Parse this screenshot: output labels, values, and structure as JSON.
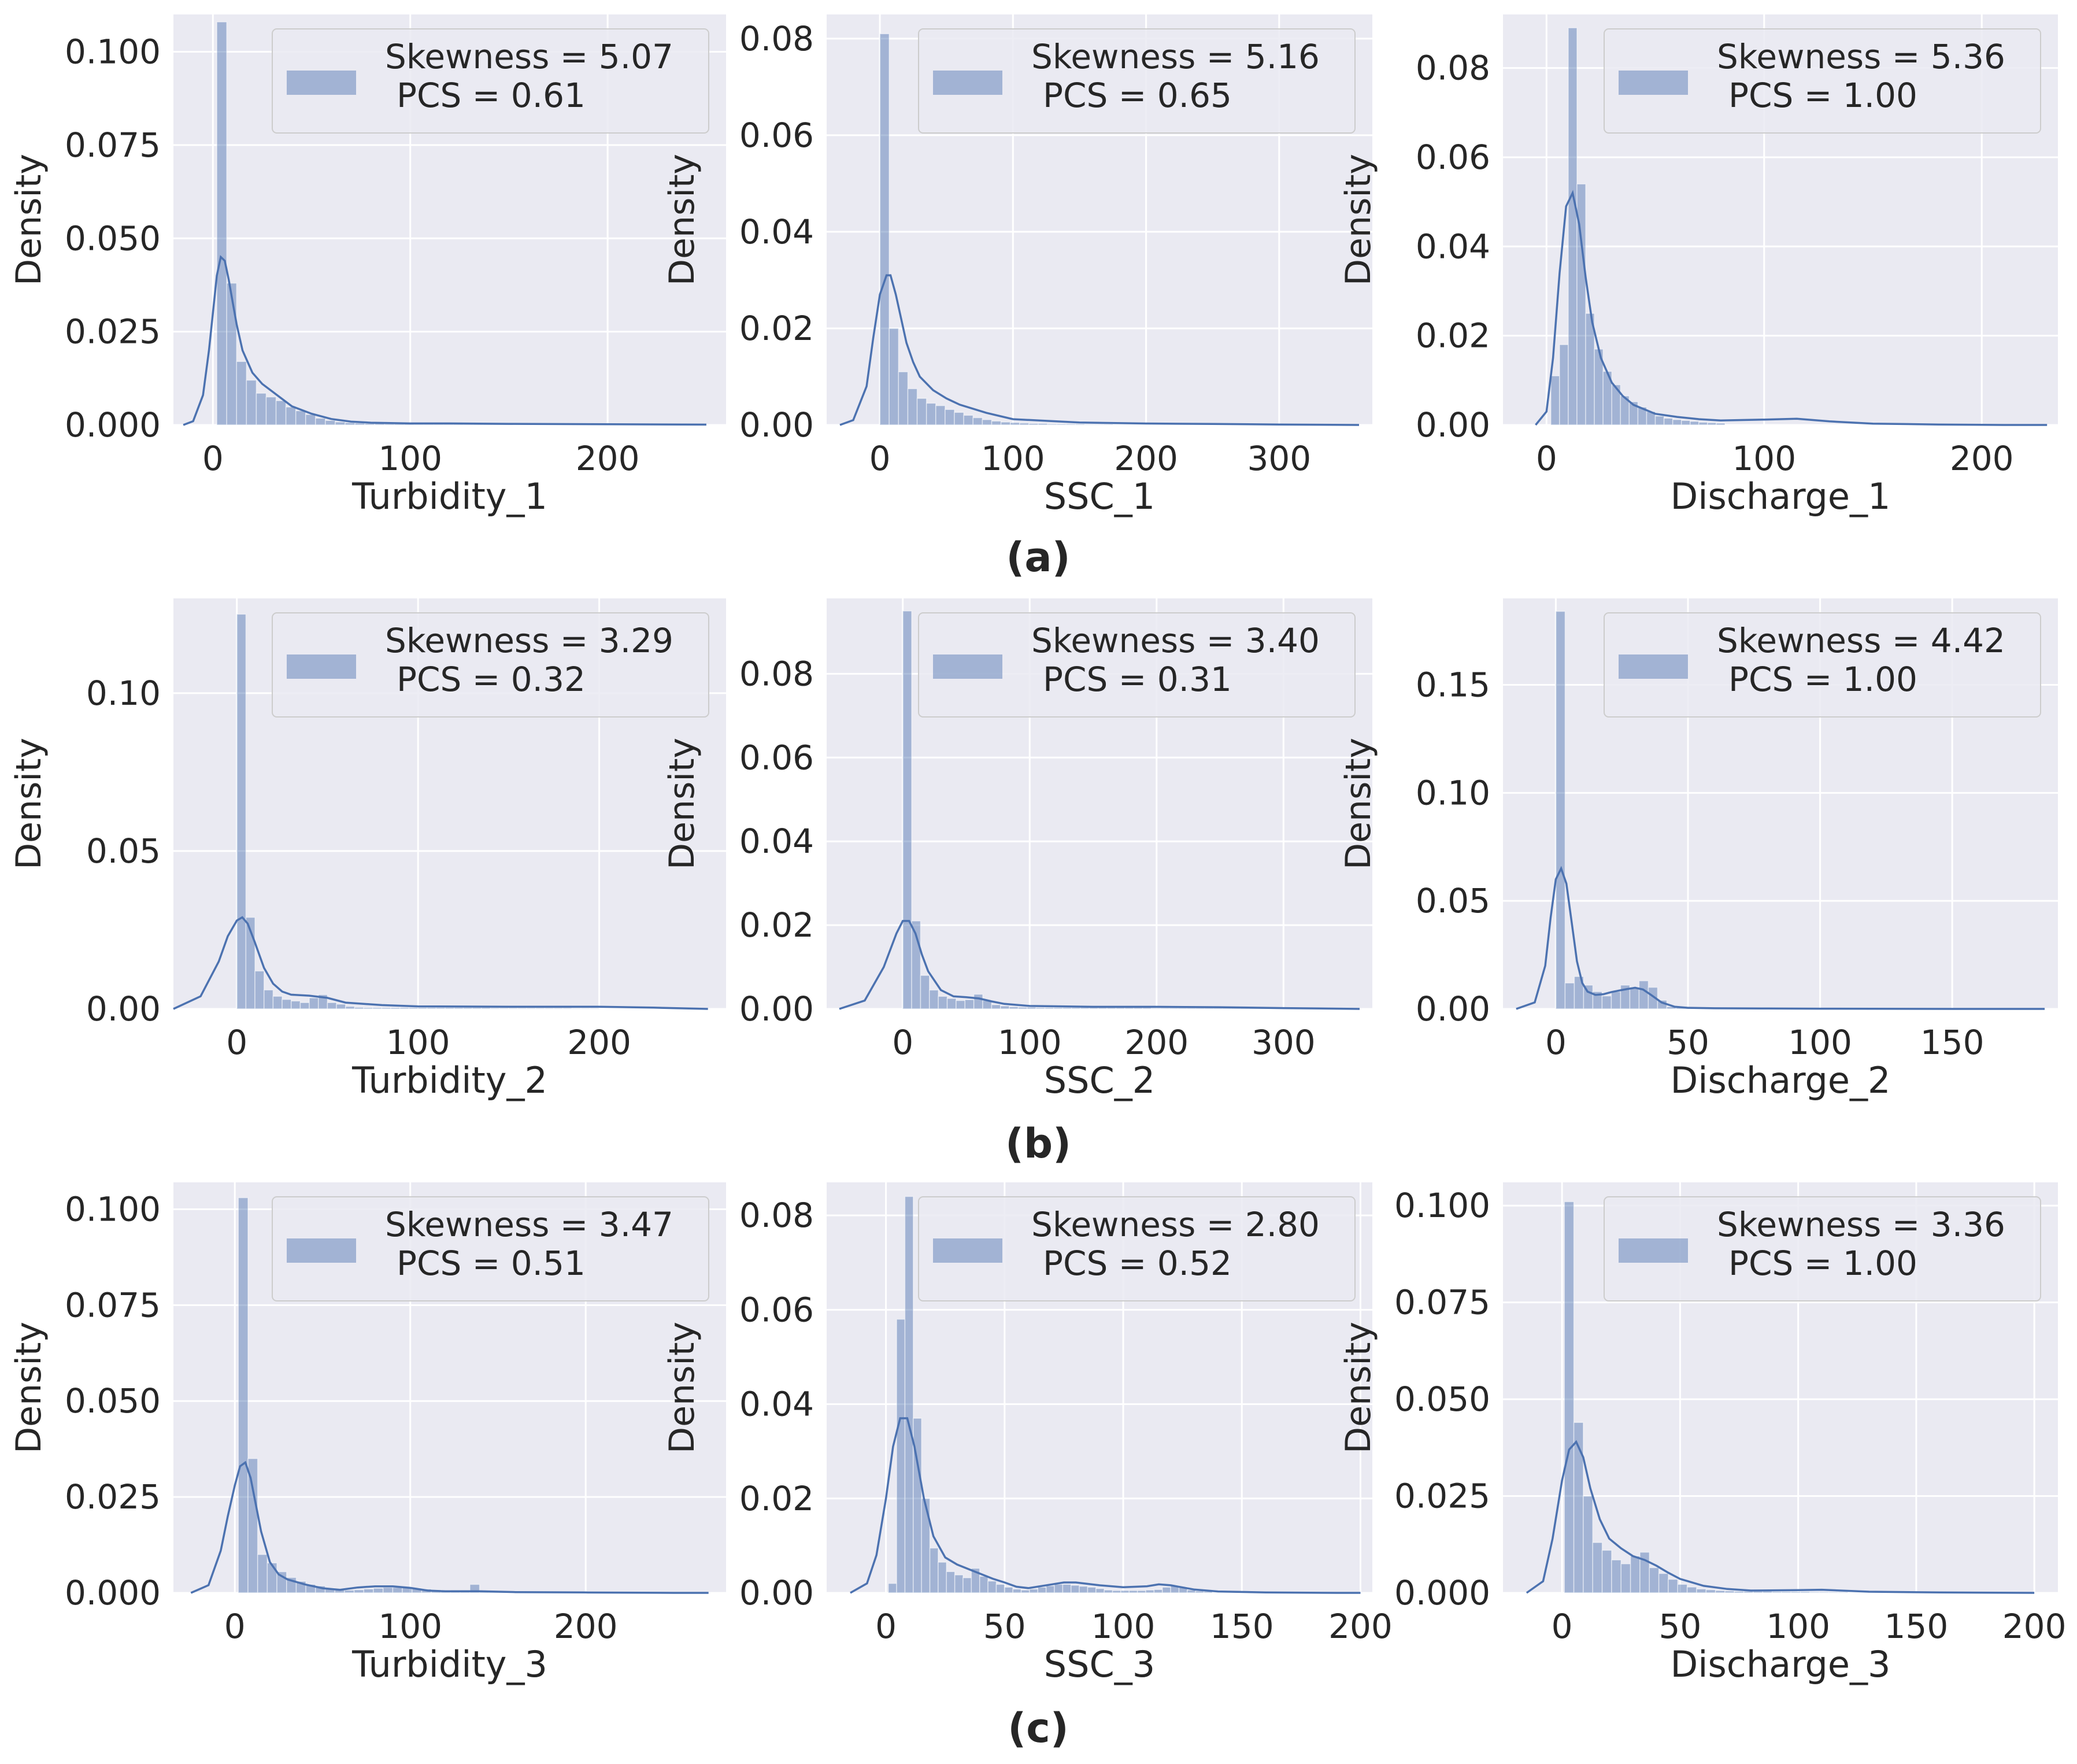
{
  "figure": {
    "row_labels": [
      "(a)",
      "(b)",
      "(c)"
    ]
  },
  "style": {
    "panel_bg": "#eaeaf2",
    "grid": "#ffffff",
    "bar_fill": "#4c72b0",
    "bar_opacity": 0.45,
    "kde_line": "#4c72b0",
    "text": "#262626",
    "legend_bg": "#eaeaf2",
    "legend_border": "#cccccc"
  },
  "chart_data": [
    {
      "type": "histogram",
      "row": "a",
      "xlabel": "Turbidity_1",
      "ylabel": "Density",
      "xlim": [
        -20,
        260
      ],
      "ylim": [
        0,
        0.11
      ],
      "xticks": [
        0,
        100,
        200
      ],
      "yticks": [
        0.0,
        0.025,
        0.05,
        0.075,
        0.1
      ],
      "ytick_labels": [
        "0.000",
        "0.025",
        "0.050",
        "0.075",
        "0.100"
      ],
      "legend": [
        "Skewness = 5.07",
        "PCS = 0.61"
      ],
      "bins": {
        "start": 2,
        "width": 5
      },
      "bar_values": [
        0.108,
        0.038,
        0.017,
        0.012,
        0.0085,
        0.0075,
        0.0065,
        0.0048,
        0.0038,
        0.0028,
        0.0018,
        0.0012,
        0.0008,
        0.0006,
        0.0005,
        0.0004,
        0.0004,
        0.0003,
        0.0003,
        0.0003,
        0.0002,
        0.0002,
        0.0002,
        0.0002,
        0.0002,
        0.0001,
        0.0001,
        0.0001,
        0.0001,
        0.0001
      ],
      "kde": {
        "x": [
          -15,
          -10,
          -5,
          -2,
          0,
          2,
          4,
          6,
          8,
          10,
          12,
          15,
          20,
          25,
          30,
          35,
          40,
          50,
          60,
          70,
          80,
          100,
          120,
          150,
          200,
          250
        ],
        "y": [
          0.0,
          0.001,
          0.008,
          0.02,
          0.03,
          0.04,
          0.045,
          0.044,
          0.039,
          0.033,
          0.027,
          0.02,
          0.014,
          0.011,
          0.009,
          0.007,
          0.005,
          0.003,
          0.0016,
          0.0009,
          0.0006,
          0.0004,
          0.0004,
          0.0003,
          0.0002,
          0.0001
        ]
      }
    },
    {
      "type": "histogram",
      "row": "a",
      "xlabel": "SSC_1",
      "ylabel": "Density",
      "xlim": [
        -40,
        370
      ],
      "ylim": [
        0,
        0.085
      ],
      "xticks": [
        0,
        100,
        200,
        300
      ],
      "yticks": [
        0.0,
        0.02,
        0.04,
        0.06,
        0.08
      ],
      "ytick_labels": [
        "0.00",
        "0.02",
        "0.04",
        "0.06",
        "0.08"
      ],
      "legend": [
        "Skewness = 5.16",
        "PCS = 0.65"
      ],
      "bins": {
        "start": 0,
        "width": 7
      },
      "bar_values": [
        0.081,
        0.02,
        0.011,
        0.0075,
        0.0055,
        0.0045,
        0.004,
        0.0032,
        0.0026,
        0.002,
        0.0015,
        0.0011,
        0.0008,
        0.0006,
        0.0005,
        0.0004,
        0.0003,
        0.0003,
        0.0002,
        0.0002,
        0.0002,
        0.0002,
        0.0001,
        0.0001,
        0.0001
      ],
      "kde": {
        "x": [
          -30,
          -20,
          -10,
          -5,
          0,
          5,
          8,
          12,
          16,
          20,
          25,
          30,
          40,
          50,
          60,
          80,
          100,
          150,
          200,
          250,
          300,
          360
        ],
        "y": [
          0.0,
          0.001,
          0.008,
          0.018,
          0.027,
          0.031,
          0.031,
          0.027,
          0.022,
          0.017,
          0.013,
          0.01,
          0.0072,
          0.0055,
          0.0042,
          0.0025,
          0.0012,
          0.0005,
          0.0003,
          0.0002,
          0.0001,
          0.0
        ]
      }
    },
    {
      "type": "histogram",
      "row": "a",
      "xlabel": "Discharge_1",
      "ylabel": "Density",
      "xlim": [
        -20,
        235
      ],
      "ylim": [
        0,
        0.092
      ],
      "xticks": [
        0,
        100,
        200
      ],
      "yticks": [
        0.0,
        0.02,
        0.04,
        0.06,
        0.08
      ],
      "ytick_labels": [
        "0.00",
        "0.02",
        "0.04",
        "0.06",
        "0.08"
      ],
      "legend": [
        "Skewness = 5.36",
        "PCS = 1.00"
      ],
      "bins": {
        "start": 2,
        "width": 4
      },
      "bar_values": [
        0.011,
        0.018,
        0.089,
        0.054,
        0.025,
        0.017,
        0.012,
        0.009,
        0.0065,
        0.0052,
        0.004,
        0.003,
        0.002,
        0.0015,
        0.0012,
        0.001,
        0.0008,
        0.0006,
        0.0005,
        0.0004
      ],
      "kde": {
        "x": [
          -5,
          0,
          3,
          6,
          9,
          12,
          15,
          18,
          21,
          25,
          30,
          35,
          40,
          50,
          60,
          70,
          80,
          100,
          115,
          130,
          150,
          180,
          210,
          230
        ],
        "y": [
          0.0,
          0.003,
          0.015,
          0.034,
          0.049,
          0.052,
          0.045,
          0.033,
          0.023,
          0.015,
          0.0095,
          0.0065,
          0.0045,
          0.0025,
          0.0018,
          0.0013,
          0.001,
          0.0012,
          0.0014,
          0.0008,
          0.0003,
          0.0001,
          0.0,
          0.0
        ]
      }
    },
    {
      "type": "histogram",
      "row": "b",
      "xlabel": "Turbidity_2",
      "ylabel": "Density",
      "xlim": [
        -35,
        270
      ],
      "ylim": [
        0,
        0.13
      ],
      "xticks": [
        0,
        100,
        200
      ],
      "yticks": [
        0.0,
        0.05,
        0.1
      ],
      "ytick_labels": [
        "0.00",
        "0.05",
        "0.10"
      ],
      "legend": [
        "Skewness = 3.29",
        "PCS = 0.32"
      ],
      "bins": {
        "start": 0,
        "width": 5
      },
      "bar_values": [
        0.125,
        0.029,
        0.012,
        0.006,
        0.004,
        0.003,
        0.0025,
        0.002,
        0.0035,
        0.0045,
        0.002,
        0.0015,
        0.0008,
        0.0005,
        0.0004,
        0.0004,
        0.0004,
        0.0004,
        0.0004,
        0.0004,
        0.0004,
        0.0004,
        0.0004,
        0.0004,
        0.0004,
        0.0004,
        0.0004,
        0.0004,
        0.0003,
        0.0003,
        0.0003,
        0.0003,
        0.0003,
        0.0003,
        0.0003,
        0.0003,
        0.0003,
        0.0002,
        0.0002,
        0.0002
      ],
      "kde": {
        "x": [
          -35,
          -20,
          -10,
          -5,
          0,
          3,
          6,
          10,
          15,
          20,
          25,
          30,
          40,
          50,
          60,
          80,
          100,
          150,
          200,
          230,
          260
        ],
        "y": [
          0.0,
          0.004,
          0.015,
          0.023,
          0.028,
          0.029,
          0.027,
          0.021,
          0.013,
          0.008,
          0.0055,
          0.0045,
          0.0042,
          0.0035,
          0.002,
          0.0012,
          0.0008,
          0.0007,
          0.0007,
          0.0004,
          0.0
        ]
      }
    },
    {
      "type": "histogram",
      "row": "b",
      "xlabel": "SSC_2",
      "ylabel": "Density",
      "xlim": [
        -60,
        370
      ],
      "ylim": [
        0,
        0.098
      ],
      "xticks": [
        0,
        100,
        200,
        300
      ],
      "yticks": [
        0.0,
        0.02,
        0.04,
        0.06,
        0.08
      ],
      "ytick_labels": [
        "0.00",
        "0.02",
        "0.04",
        "0.06",
        "0.08"
      ],
      "legend": [
        "Skewness = 3.40",
        "PCS = 0.31"
      ],
      "bins": {
        "start": 0,
        "width": 7
      },
      "bar_values": [
        0.095,
        0.021,
        0.008,
        0.0045,
        0.003,
        0.0025,
        0.002,
        0.0022,
        0.0035,
        0.002,
        0.001,
        0.0007,
        0.0005,
        0.0004,
        0.0004,
        0.0003,
        0.0003,
        0.0003,
        0.0003,
        0.0003,
        0.0003,
        0.0003,
        0.0003,
        0.0003,
        0.0003,
        0.0003,
        0.0003,
        0.0003,
        0.0002,
        0.0002,
        0.0002,
        0.0002,
        0.0002,
        0.0002,
        0.0002,
        0.0002,
        0.0002,
        0.0002,
        0.0002,
        0.0002,
        0.0002,
        0.0002,
        0.0002,
        0.0002,
        0.0002,
        0.0002,
        0.0002,
        0.0002,
        0.0002,
        0.0001
      ],
      "kde": {
        "x": [
          -50,
          -30,
          -15,
          -5,
          0,
          5,
          10,
          15,
          20,
          30,
          40,
          50,
          60,
          70,
          80,
          100,
          150,
          200,
          250,
          300,
          360
        ],
        "y": [
          0.0,
          0.002,
          0.01,
          0.018,
          0.021,
          0.021,
          0.018,
          0.013,
          0.009,
          0.0045,
          0.003,
          0.0028,
          0.0025,
          0.0018,
          0.0012,
          0.0007,
          0.0005,
          0.0005,
          0.0004,
          0.0002,
          0.0
        ]
      }
    },
    {
      "type": "histogram",
      "row": "b",
      "xlabel": "Discharge_2",
      "ylabel": "Density",
      "xlim": [
        -20,
        190
      ],
      "ylim": [
        0,
        0.19
      ],
      "xticks": [
        0,
        50,
        100,
        150
      ],
      "yticks": [
        0.0,
        0.05,
        0.1,
        0.15
      ],
      "ytick_labels": [
        "0.00",
        "0.05",
        "0.10",
        "0.15"
      ],
      "legend": [
        "Skewness = 4.42",
        "PCS = 1.00"
      ],
      "bins": {
        "start": 0,
        "width": 3.5
      },
      "bar_values": [
        0.184,
        0.012,
        0.015,
        0.011,
        0.008,
        0.006,
        0.008,
        0.011,
        0.01,
        0.013,
        0.01,
        0.004,
        0.001,
        0.0006,
        0.0005,
        0.0004,
        0.0003,
        0.0003,
        0.0002,
        0.0002
      ],
      "kde": {
        "x": [
          -15,
          -8,
          -4,
          -2,
          0,
          2,
          4,
          6,
          8,
          10,
          12,
          15,
          18,
          21,
          24,
          27,
          30,
          33,
          36,
          40,
          45,
          50,
          60,
          80,
          100,
          150,
          185
        ],
        "y": [
          0.0,
          0.003,
          0.02,
          0.042,
          0.06,
          0.065,
          0.058,
          0.04,
          0.022,
          0.012,
          0.008,
          0.0065,
          0.0068,
          0.0078,
          0.0085,
          0.0092,
          0.0098,
          0.009,
          0.0065,
          0.003,
          0.001,
          0.0005,
          0.0003,
          0.0002,
          0.0001,
          0.0,
          0.0
        ]
      }
    },
    {
      "type": "histogram",
      "row": "c",
      "xlabel": "Turbidity_3",
      "ylabel": "Density",
      "xlim": [
        -35,
        280
      ],
      "ylim": [
        0,
        0.107
      ],
      "xticks": [
        0,
        100,
        200
      ],
      "yticks": [
        0.0,
        0.025,
        0.05,
        0.075,
        0.1
      ],
      "ytick_labels": [
        "0.000",
        "0.025",
        "0.050",
        "0.075",
        "0.100"
      ],
      "legend": [
        "Skewness = 3.47",
        "PCS = 0.51"
      ],
      "bins": {
        "start": 2,
        "width": 5.5
      },
      "bar_values": [
        0.103,
        0.035,
        0.01,
        0.0078,
        0.0055,
        0.004,
        0.003,
        0.0022,
        0.0018,
        0.0012,
        0.0009,
        0.0007,
        0.0008,
        0.001,
        0.0012,
        0.0014,
        0.0014,
        0.0014,
        0.0012,
        0.001,
        0.0008,
        0.0006,
        0.0005,
        0.0005,
        0.0022,
        0.0005,
        0.0003,
        0.0003,
        0.0003,
        0.0002
      ],
      "kde": {
        "x": [
          -25,
          -15,
          -8,
          -4,
          0,
          3,
          6,
          9,
          12,
          15,
          20,
          25,
          30,
          40,
          50,
          60,
          70,
          80,
          90,
          100,
          110,
          120,
          140,
          160,
          200,
          250,
          270
        ],
        "y": [
          0.0,
          0.002,
          0.011,
          0.02,
          0.028,
          0.033,
          0.034,
          0.03,
          0.023,
          0.016,
          0.008,
          0.0048,
          0.0035,
          0.0022,
          0.0012,
          0.0008,
          0.0014,
          0.0017,
          0.0017,
          0.0013,
          0.0006,
          0.0004,
          0.0004,
          0.0002,
          0.0001,
          0.0,
          0.0
        ]
      }
    },
    {
      "type": "histogram",
      "row": "c",
      "xlabel": "SSC_3",
      "ylabel": "Density",
      "xlim": [
        -25,
        205
      ],
      "ylim": [
        0,
        0.087
      ],
      "xticks": [
        0,
        50,
        100,
        150,
        200
      ],
      "yticks": [
        0.0,
        0.02,
        0.04,
        0.06,
        0.08
      ],
      "ytick_labels": [
        "0.00",
        "0.02",
        "0.04",
        "0.06",
        "0.08"
      ],
      "legend": [
        "Skewness = 2.80",
        "PCS = 0.52"
      ],
      "bins": {
        "start": 1,
        "width": 3.5
      },
      "bar_values": [
        0.002,
        0.058,
        0.084,
        0.037,
        0.02,
        0.0095,
        0.0065,
        0.0045,
        0.0038,
        0.0032,
        0.0052,
        0.0035,
        0.0025,
        0.0018,
        0.0012,
        0.0008,
        0.0006,
        0.0008,
        0.0012,
        0.0015,
        0.0018,
        0.0018,
        0.0016,
        0.0014,
        0.0012,
        0.0009,
        0.0006,
        0.0005,
        0.0005,
        0.0005,
        0.0005,
        0.0006,
        0.0007,
        0.0012,
        0.0015,
        0.0012,
        0.0006,
        0.0004,
        0.0003
      ],
      "kde": {
        "x": [
          -15,
          -8,
          -4,
          0,
          3,
          6,
          9,
          12,
          16,
          20,
          25,
          30,
          35,
          40,
          45,
          50,
          55,
          60,
          70,
          75,
          80,
          90,
          100,
          110,
          115,
          120,
          130,
          140,
          160,
          190,
          200
        ],
        "y": [
          0.0,
          0.002,
          0.008,
          0.02,
          0.031,
          0.037,
          0.037,
          0.031,
          0.02,
          0.012,
          0.0075,
          0.006,
          0.005,
          0.004,
          0.003,
          0.0022,
          0.0013,
          0.001,
          0.0018,
          0.0022,
          0.0022,
          0.0016,
          0.0012,
          0.0014,
          0.0018,
          0.0016,
          0.0007,
          0.0003,
          0.0001,
          0.0,
          0.0
        ]
      }
    },
    {
      "type": "histogram",
      "row": "c",
      "xlabel": "Discharge_3",
      "ylabel": "Density",
      "xlim": [
        -25,
        210
      ],
      "ylim": [
        0,
        0.106
      ],
      "xticks": [
        0,
        50,
        100,
        150,
        200
      ],
      "yticks": [
        0.0,
        0.025,
        0.05,
        0.075,
        0.1
      ],
      "ytick_labels": [
        "0.000",
        "0.025",
        "0.050",
        "0.075",
        "0.100"
      ],
      "legend": [
        "Skewness = 3.36",
        "PCS = 1.00"
      ],
      "bins": {
        "start": 1,
        "width": 4
      },
      "bar_values": [
        0.101,
        0.044,
        0.025,
        0.013,
        0.011,
        0.0085,
        0.0075,
        0.0095,
        0.0105,
        0.0065,
        0.005,
        0.0035,
        0.0022,
        0.0015,
        0.001,
        0.0008,
        0.0006,
        0.0005,
        0.0004,
        0.0004,
        0.0004,
        0.0004,
        0.0003,
        0.0003,
        0.0003,
        0.0003,
        0.0002,
        0.0002,
        0.0002,
        0.0002
      ],
      "kde": {
        "x": [
          -15,
          -8,
          -4,
          0,
          3,
          6,
          9,
          12,
          16,
          20,
          25,
          30,
          35,
          40,
          45,
          50,
          60,
          70,
          80,
          100,
          110,
          130,
          160,
          200
        ],
        "y": [
          0.0,
          0.003,
          0.014,
          0.029,
          0.037,
          0.039,
          0.035,
          0.027,
          0.019,
          0.014,
          0.0115,
          0.0095,
          0.0085,
          0.007,
          0.0052,
          0.0036,
          0.0018,
          0.001,
          0.0006,
          0.0007,
          0.0008,
          0.0003,
          0.0001,
          0.0
        ]
      }
    }
  ]
}
